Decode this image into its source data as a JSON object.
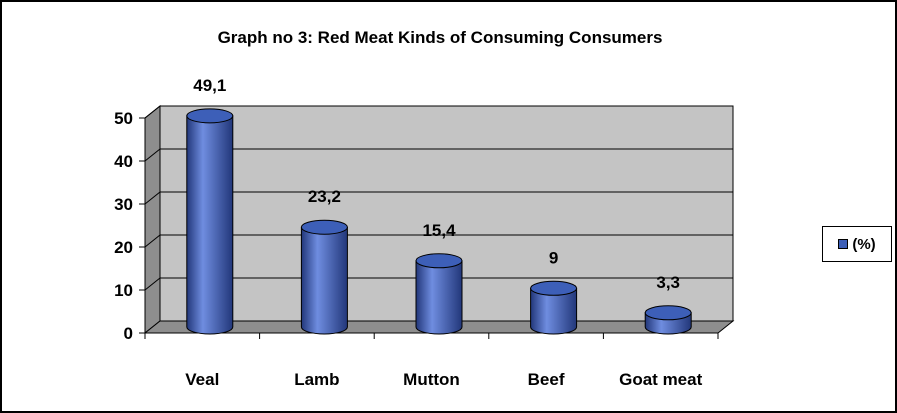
{
  "chart_data": {
    "type": "bar",
    "title": "Graph no 3: Red Meat Kinds of Consuming Consumers",
    "categories": [
      "Veal",
      "Lamb",
      "Mutton",
      "Beef",
      "Goat meat"
    ],
    "series": [
      {
        "name": "(%)",
        "values": [
          49.1,
          23.2,
          15.4,
          9,
          3.3
        ]
      }
    ],
    "data_labels": [
      "49,1",
      "23,2",
      "15,4",
      "9",
      "3,3"
    ],
    "y_ticks": [
      "0",
      "10",
      "20",
      "30",
      "40",
      "50"
    ],
    "ylim": [
      0,
      50
    ],
    "xlabel": "",
    "ylabel": "",
    "grid": true,
    "legend": "right",
    "style": "3d-cylinder",
    "colors": {
      "bar": "#3D5FB8",
      "bar_dark": "#22377A",
      "bar_light": "#6F8DE0",
      "wall": "#C4C4C4",
      "floor": "#8E8E8E"
    }
  }
}
